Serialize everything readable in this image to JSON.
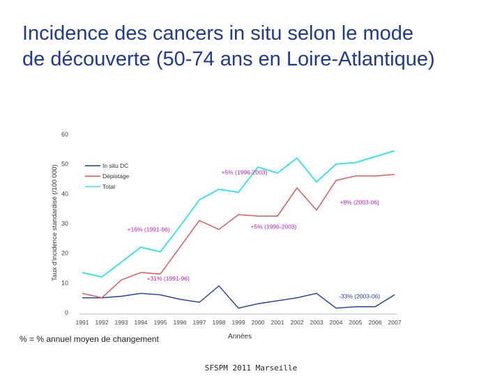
{
  "slide": {
    "title_line1": "Incidence des cancers in situ selon le mode",
    "title_line2": "de découverte (50-74 ans en Loire-Atlantique)",
    "note": "% = % annuel moyen de changement",
    "footer": "SFSPM 2011 Marseille"
  },
  "chart_data": {
    "type": "line",
    "title": "",
    "xlabel": "Années",
    "ylabel": "Taux d'incidence standardisé (/100 000)",
    "ylim": [
      0,
      60
    ],
    "yticks": [
      0,
      10,
      20,
      30,
      40,
      50,
      60
    ],
    "x": [
      1991,
      1992,
      1993,
      1994,
      1995,
      1996,
      1997,
      1998,
      1999,
      2000,
      2001,
      2002,
      2003,
      2004,
      2005,
      2006,
      2007
    ],
    "series": [
      {
        "name": "In situ DC",
        "color": "#1f3aa6",
        "values": [
          5,
          5,
          5.5,
          6.5,
          6,
          4.5,
          3.5,
          9,
          1.5,
          3,
          4,
          5,
          6.5,
          1.5,
          2,
          2,
          6
        ]
      },
      {
        "name": "Dépistage",
        "color": "#e05050",
        "values": [
          6.5,
          5,
          11,
          13.5,
          13,
          22,
          31,
          28,
          33,
          32.5,
          32.5,
          42,
          34.5,
          44.5,
          46,
          46,
          46.5
        ]
      },
      {
        "name": "Total",
        "color": "#3de3e8",
        "values": [
          13.5,
          12,
          17,
          22,
          20.5,
          29,
          38,
          41.5,
          40.5,
          49,
          47,
          52,
          44,
          50,
          50.5,
          52.5,
          54.5
        ]
      }
    ],
    "annotations": [
      {
        "text": "+5% (1996-2003)",
        "color": "#b51fb5",
        "x": 1999.3,
        "y": 46.5
      },
      {
        "text": "+8% (2003-06)",
        "color": "#b51fb5",
        "x": 2005.2,
        "y": 36.5
      },
      {
        "text": "+5% (1996-2003)",
        "color": "#b51fb5",
        "x": 2000.8,
        "y": 28.2
      },
      {
        "text": "+16% (1991-96)",
        "color": "#b51fb5",
        "x": 1994.4,
        "y": 27.3
      },
      {
        "text": "+31% (1991-96)",
        "color": "#b51fb5",
        "x": 1995.4,
        "y": 10.8
      },
      {
        "text": "-33% (2003-06)",
        "color": "#1f3aa6",
        "x": 2005.2,
        "y": 4.8
      }
    ]
  }
}
